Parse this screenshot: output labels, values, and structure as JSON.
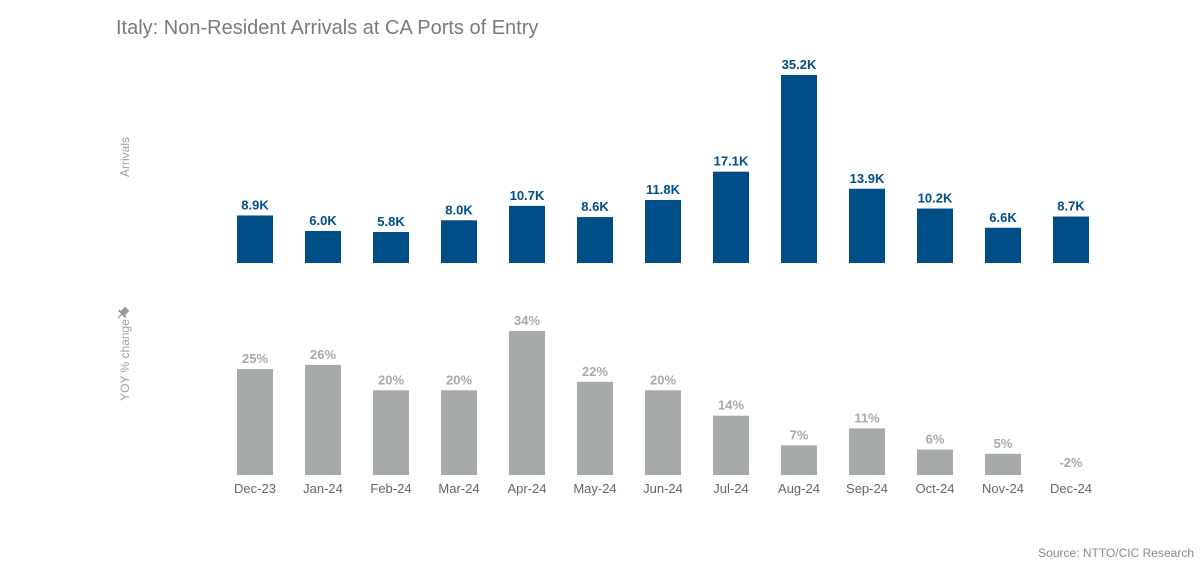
{
  "title": "Italy: Non-Resident Arrivals at CA Ports of Entry",
  "source": "Source: NTTO/CIC Research",
  "colors": {
    "arrivals": "#004e87",
    "yoy": "#a7aaab"
  },
  "icons": {
    "pin": "pin-icon"
  },
  "chart_data": [
    {
      "type": "bar",
      "ylabel": "Arrivals",
      "categories": [
        "Dec-23",
        "Jan-24",
        "Feb-24",
        "Mar-24",
        "Apr-24",
        "May-24",
        "Jun-24",
        "Jul-24",
        "Aug-24",
        "Sep-24",
        "Oct-24",
        "Nov-24",
        "Dec-24"
      ],
      "values": [
        8900,
        6000,
        5800,
        8000,
        10700,
        8600,
        11800,
        17100,
        35200,
        13900,
        10200,
        6600,
        8700
      ],
      "data_labels": [
        "8.9K",
        "6.0K",
        "5.8K",
        "8.0K",
        "10.7K",
        "8.6K",
        "11.8K",
        "17.1K",
        "35.2K",
        "13.9K",
        "10.2K",
        "6.6K",
        "8.7K"
      ]
    },
    {
      "type": "bar",
      "ylabel": "YOY % change",
      "categories": [
        "Dec-23",
        "Jan-24",
        "Feb-24",
        "Mar-24",
        "Apr-24",
        "May-24",
        "Jun-24",
        "Jul-24",
        "Aug-24",
        "Sep-24",
        "Oct-24",
        "Nov-24",
        "Dec-24"
      ],
      "values": [
        25,
        26,
        20,
        20,
        34,
        22,
        20,
        14,
        7,
        11,
        6,
        5,
        -2
      ],
      "data_labels": [
        "25%",
        "26%",
        "20%",
        "20%",
        "34%",
        "22%",
        "20%",
        "14%",
        "7%",
        "11%",
        "6%",
        "5%",
        "-2%"
      ]
    }
  ]
}
